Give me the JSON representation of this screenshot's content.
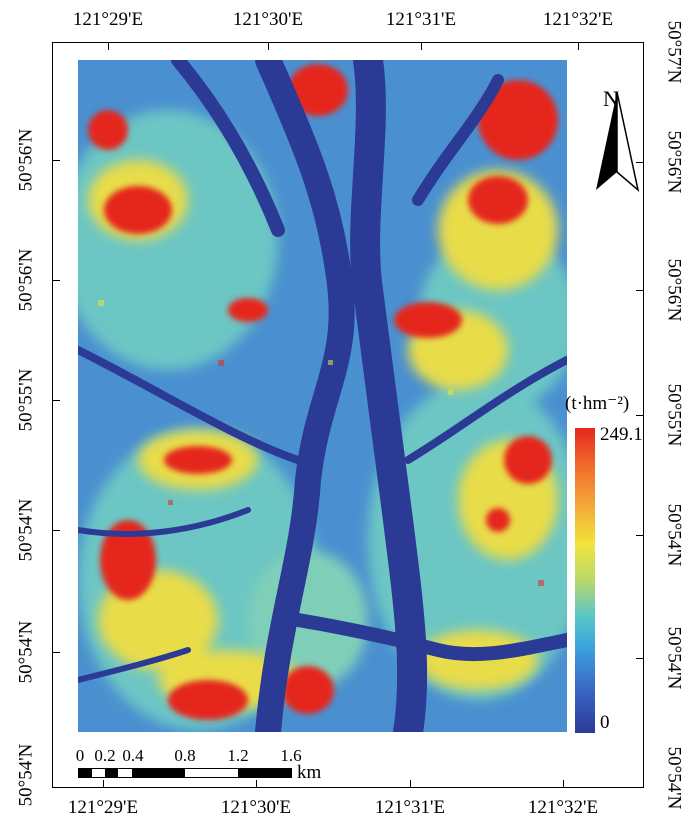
{
  "graticule": {
    "top_lon": [
      "121°29'E",
      "121°30'E",
      "121°31'E",
      "121°32'E"
    ],
    "bottom_lon": [
      "121°29'E",
      "121°30'E",
      "121°31'E",
      "121°32'E"
    ],
    "left_lat": [
      "50°56'N",
      "50°56'N",
      "50°55'N",
      "50°54'N",
      "50°54'N",
      "50°54'N"
    ],
    "right_lat": [
      "50°57'N",
      "50°56'N",
      "50°56'N",
      "50°55'N",
      "50°54'N",
      "50°54'N",
      "50°54'N"
    ]
  },
  "north_arrow": {
    "letter": "N",
    "icon": "north-arrow-icon"
  },
  "legend": {
    "unit": "(t·hm⁻²)",
    "max": "249.1",
    "min": "0",
    "colors": [
      "#e5271f",
      "#f3b43a",
      "#f2e43b",
      "#56c6c8",
      "#3a66c4",
      "#2b3a95"
    ]
  },
  "scale_bar": {
    "labels": [
      "0",
      "0.2",
      "0.4",
      "0.8",
      "1.2",
      "1.6"
    ],
    "unit": "km"
  },
  "map": {
    "colors": {
      "high": "#e5271f",
      "mid_high": "#f2d43b",
      "mid": "#56c6c8",
      "low": "#3a78c8",
      "very_low": "#2b3a95"
    }
  }
}
